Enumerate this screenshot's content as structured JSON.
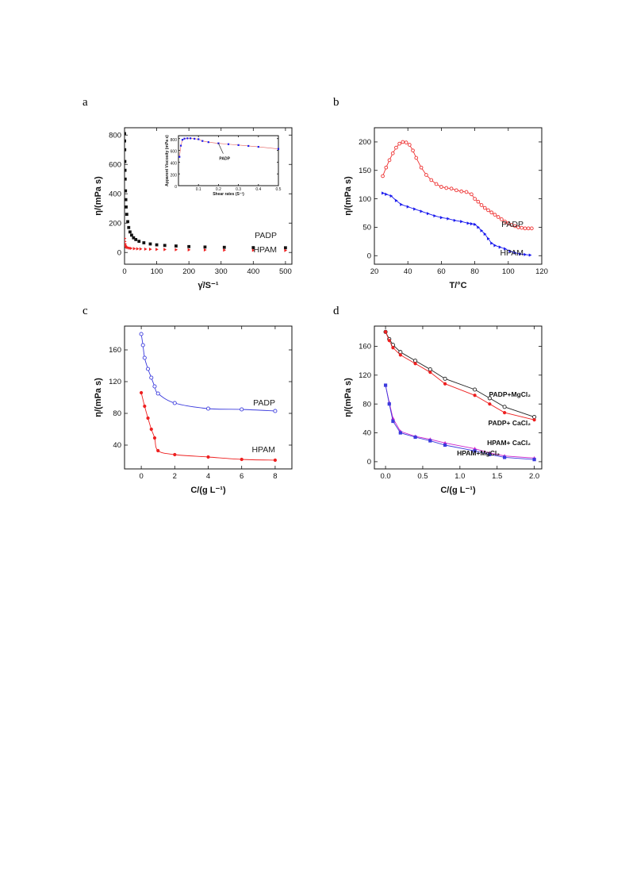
{
  "panels": [
    {
      "id": "a",
      "letter": "a"
    },
    {
      "id": "b",
      "letter": "b"
    },
    {
      "id": "c",
      "letter": "c"
    },
    {
      "id": "d",
      "letter": "d"
    }
  ],
  "chart_data": [
    {
      "panel": "a",
      "type": "scatter",
      "xlabel": "γ̇/S⁻¹",
      "ylabel": "η/(mPa s)",
      "xlim": [
        0,
        520
      ],
      "ylim": [
        -80,
        850
      ],
      "xticks": [
        0,
        100,
        200,
        300,
        400,
        500
      ],
      "yticks": [
        0,
        200,
        400,
        600,
        800
      ],
      "series": [
        {
          "name": "PADP",
          "color": "#111111",
          "marker": "square",
          "x": [
            0.1,
            0.3,
            0.6,
            1,
            1.5,
            2,
            3,
            4,
            5,
            7,
            10,
            13,
            17,
            22,
            28,
            35,
            45,
            60,
            80,
            100,
            125,
            160,
            200,
            250,
            310,
            400,
            500
          ],
          "y": [
            810,
            760,
            700,
            620,
            560,
            500,
            420,
            360,
            310,
            260,
            210,
            170,
            140,
            118,
            100,
            88,
            76,
            66,
            58,
            52,
            48,
            44,
            40,
            37,
            35,
            33,
            32
          ]
        },
        {
          "name": "HPAM",
          "color": "#ee2020",
          "marker": "triangle-right",
          "x": [
            0.5,
            1,
            2,
            3,
            5,
            7,
            10,
            15,
            20,
            30,
            40,
            50,
            65,
            80,
            100,
            125,
            160,
            200,
            250,
            310,
            400,
            500
          ],
          "y": [
            95,
            75,
            58,
            48,
            40,
            36,
            33,
            30,
            28,
            26,
            25,
            24,
            23,
            22,
            21,
            20,
            19,
            18,
            17,
            16,
            15,
            14
          ]
        }
      ],
      "inset": {
        "xlabel": "Shear rates (S⁻¹)",
        "ylabel": "Apparent Viscosity (mPa s)",
        "xlim": [
          0,
          0.5
        ],
        "ylim": [
          0,
          850
        ],
        "xticks": [
          0.1,
          0.2,
          0.3,
          0.4,
          0.5
        ],
        "yticks": [
          0,
          200,
          400,
          600,
          800
        ],
        "annotation": "PADP",
        "series": [
          {
            "name": "PADP",
            "color": "#1a1aee",
            "x": [
              0.005,
              0.012,
              0.02,
              0.03,
              0.045,
              0.06,
              0.08,
              0.1,
              0.12,
              0.15,
              0.2,
              0.25,
              0.3,
              0.35,
              0.4,
              0.5
            ],
            "y": [
              490,
              680,
              780,
              800,
              805,
              805,
              798,
              790,
              760,
              740,
              720,
              705,
              690,
              675,
              660,
              625
            ]
          }
        ]
      }
    },
    {
      "panel": "b",
      "type": "line",
      "xlabel": "T/°C",
      "ylabel": "η/(mPa s)",
      "xlim": [
        20,
        120
      ],
      "ylim": [
        -15,
        225
      ],
      "xticks": [
        20,
        40,
        60,
        80,
        100,
        120
      ],
      "yticks": [
        0,
        50,
        100,
        150,
        200
      ],
      "series": [
        {
          "name": "PADP",
          "color": "#ee3030",
          "marker": "circle-open",
          "x": [
            25,
            27,
            29,
            31,
            33,
            35,
            37,
            39,
            41,
            43,
            45,
            48,
            51,
            54,
            57,
            60,
            63,
            66,
            69,
            72,
            75,
            78,
            80,
            82,
            84,
            86,
            88,
            90,
            92,
            94,
            96,
            98,
            100,
            102,
            104,
            106,
            108,
            110,
            112,
            114
          ],
          "y": [
            140,
            155,
            168,
            180,
            190,
            197,
            200,
            199,
            195,
            185,
            172,
            155,
            142,
            133,
            126,
            121,
            119,
            118,
            115,
            113,
            112,
            108,
            100,
            95,
            89,
            84,
            80,
            76,
            72,
            68,
            64,
            60,
            57,
            54,
            52,
            50,
            49,
            48,
            48,
            48
          ]
        },
        {
          "name": "HPAM",
          "color": "#1a1aee",
          "marker": "triangle-right",
          "x": [
            25,
            27,
            30,
            33,
            36,
            40,
            44,
            48,
            52,
            56,
            60,
            64,
            68,
            72,
            76,
            78,
            80,
            82,
            84,
            86,
            88,
            90,
            92,
            95,
            98,
            101,
            104,
            107,
            110,
            113
          ],
          "y": [
            110,
            108,
            105,
            97,
            90,
            86,
            82,
            78,
            74,
            70,
            67,
            65,
            62,
            60,
            57,
            56,
            55,
            50,
            44,
            38,
            30,
            22,
            18,
            15,
            12,
            8,
            5,
            3,
            2,
            1
          ]
        }
      ]
    },
    {
      "panel": "c",
      "type": "line",
      "xlabel": "C/(g L⁻¹)",
      "ylabel": "η/(mPa s)",
      "xlim": [
        -1,
        9
      ],
      "ylim": [
        10,
        190
      ],
      "xticks": [
        0,
        2,
        4,
        6,
        8
      ],
      "yticks": [
        40,
        80,
        120,
        160
      ],
      "series": [
        {
          "name": "PADP",
          "color": "#3b3bdd",
          "marker": "circle-open",
          "x": [
            0,
            0.1,
            0.2,
            0.4,
            0.6,
            0.8,
            1,
            2,
            4,
            6,
            8
          ],
          "y": [
            180,
            166,
            150,
            136,
            125,
            114,
            105,
            93,
            86,
            85,
            83
          ]
        },
        {
          "name": "HPAM",
          "color": "#ee2020",
          "marker": "circle",
          "x": [
            0,
            0.2,
            0.4,
            0.6,
            0.8,
            1,
            2,
            4,
            6,
            8
          ],
          "y": [
            106,
            89,
            74,
            60,
            49,
            33,
            28,
            25,
            22,
            21
          ]
        }
      ]
    },
    {
      "panel": "d",
      "type": "line",
      "xlabel": "C/(g L⁻¹)",
      "ylabel": "η/(mPa s)",
      "xlim": [
        -0.15,
        2.1
      ],
      "ylim": [
        -10,
        188
      ],
      "xticks": [
        0.0,
        0.5,
        1.0,
        1.5,
        2.0
      ],
      "yticks": [
        0,
        40,
        80,
        120,
        160
      ],
      "series": [
        {
          "name": "PADP+MgCl₂",
          "color": "#222222",
          "marker": "circle-open",
          "x": [
            0,
            0.05,
            0.1,
            0.2,
            0.4,
            0.6,
            0.8,
            1.2,
            1.4,
            1.6,
            2.0
          ],
          "y": [
            180,
            170,
            162,
            152,
            140,
            128,
            115,
            100,
            88,
            76,
            62
          ]
        },
        {
          "name": "PADP+ CaCl₂",
          "color": "#ee2020",
          "marker": "circle",
          "x": [
            0,
            0.05,
            0.1,
            0.2,
            0.4,
            0.6,
            0.8,
            1.2,
            1.4,
            1.6,
            2.0
          ],
          "y": [
            180,
            168,
            158,
            148,
            136,
            124,
            108,
            92,
            80,
            68,
            58
          ]
        },
        {
          "name": "HPAM+ CaCl₂",
          "color": "#cc22cc",
          "marker": "triangle",
          "x": [
            0,
            0.05,
            0.1,
            0.2,
            0.4,
            0.6,
            0.8,
            1.2,
            1.4,
            1.6,
            2.0
          ],
          "y": [
            106,
            82,
            60,
            42,
            35,
            31,
            26,
            18,
            12,
            8,
            5
          ]
        },
        {
          "name": "HPAM+MgCl₂",
          "color": "#3b3bdd",
          "marker": "square",
          "x": [
            0,
            0.05,
            0.1,
            0.2,
            0.4,
            0.6,
            0.8,
            1.2,
            1.4,
            1.6,
            2.0
          ],
          "y": [
            106,
            80,
            56,
            40,
            34,
            29,
            23,
            15,
            10,
            6,
            3
          ]
        }
      ]
    }
  ]
}
